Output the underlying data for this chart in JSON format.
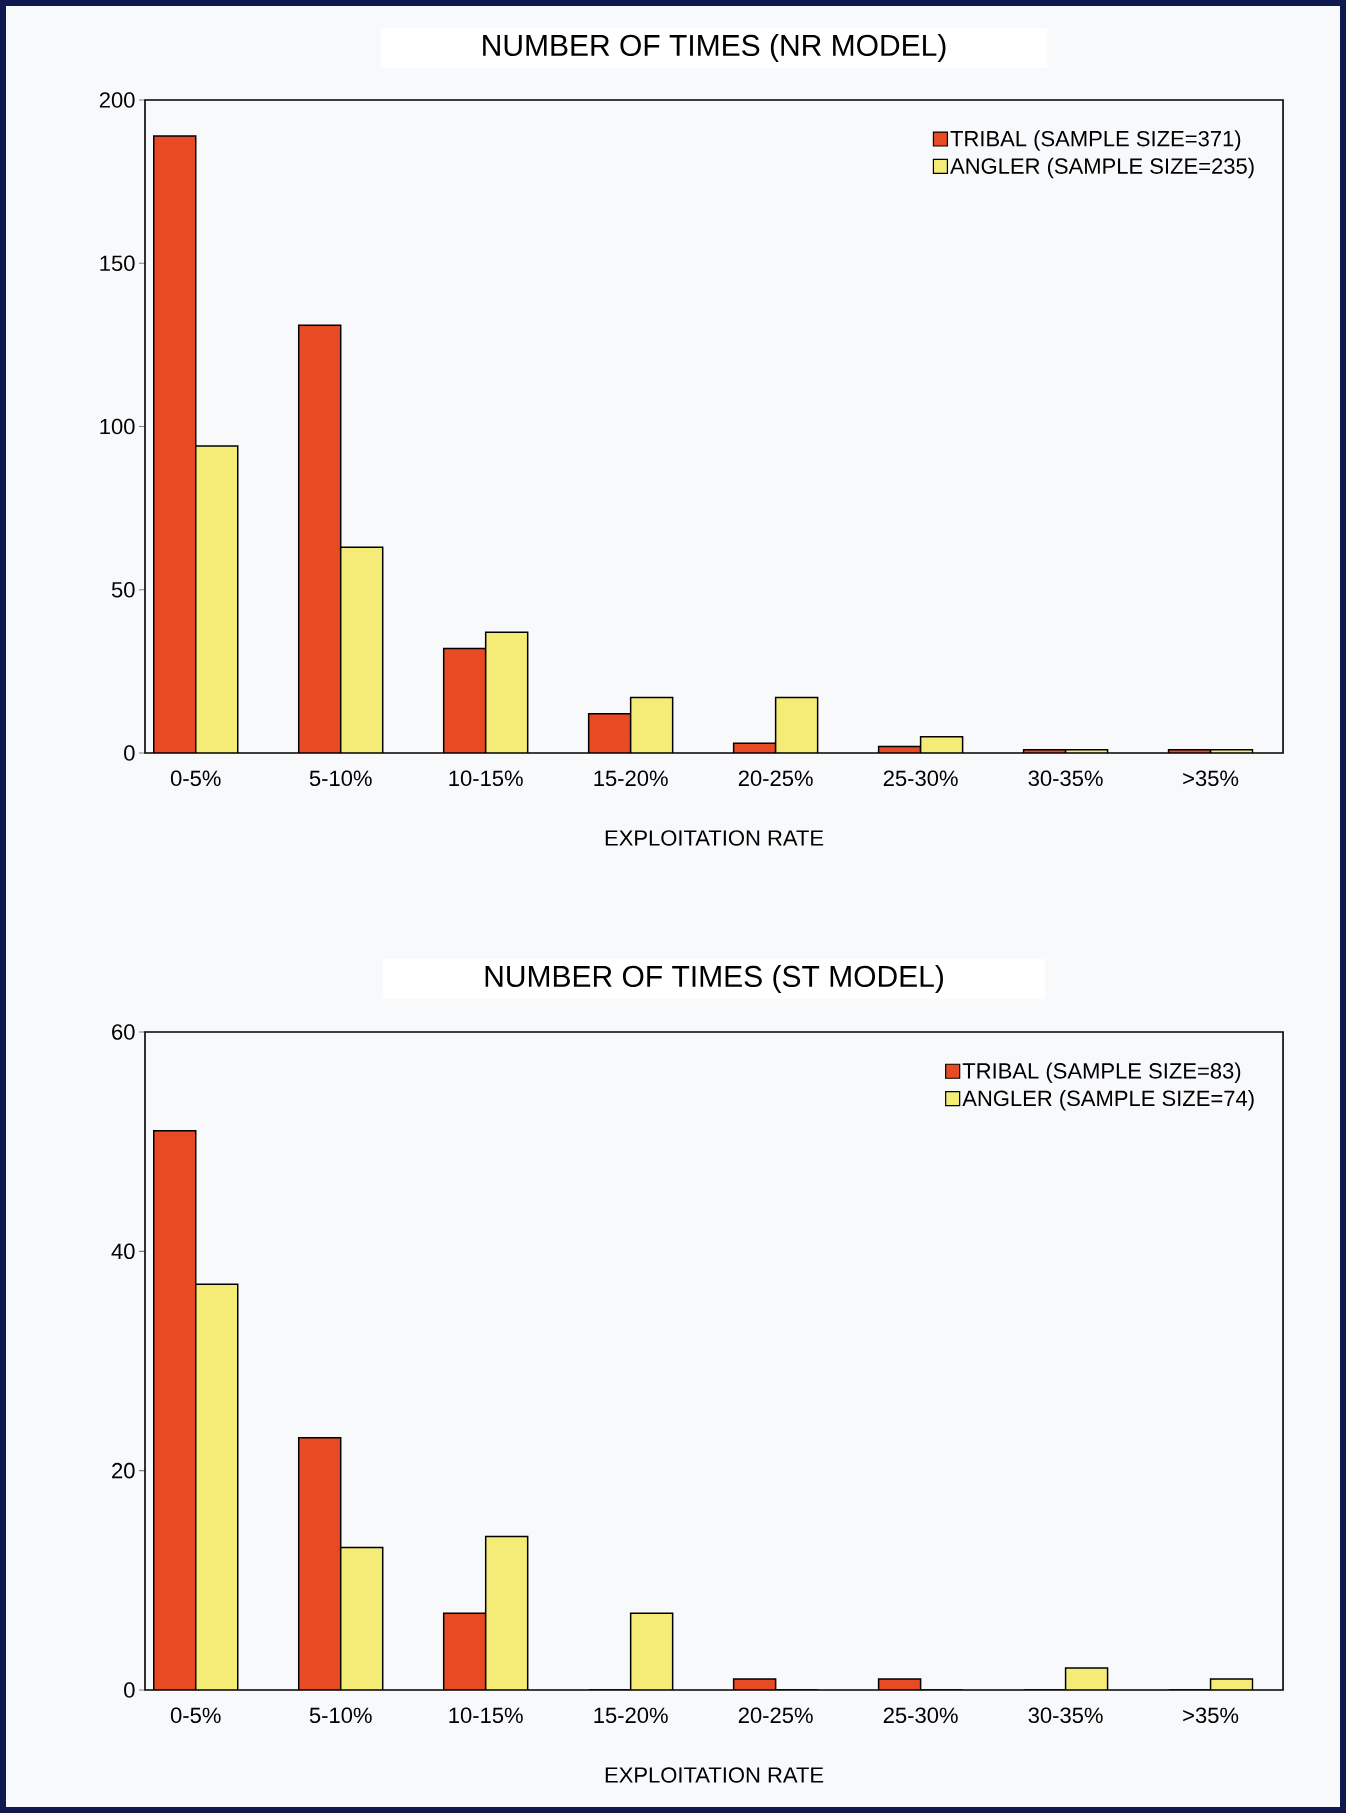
{
  "chart_data": [
    {
      "type": "bar",
      "title": "NUMBER OF TIMES (NR MODEL)",
      "xlabel": "EXPLOITATION RATE",
      "categories": [
        "0-5%",
        "5-10%",
        "10-15%",
        "15-20%",
        "20-25%",
        "25-30%",
        "30-35%",
        ">35%"
      ],
      "ylim": [
        0,
        200
      ],
      "yticks": [
        0,
        50,
        100,
        150,
        200
      ],
      "legend": "top right",
      "series": [
        {
          "name": "TRIBAL (SAMPLE SIZE=371)",
          "color": "#e84b23",
          "values": [
            189,
            131,
            32,
            12,
            3,
            2,
            1,
            1
          ]
        },
        {
          "name": "ANGLER (SAMPLE SIZE=235)",
          "color": "#f5ec78",
          "values": [
            94,
            63,
            37,
            17,
            17,
            5,
            1,
            1
          ]
        }
      ]
    },
    {
      "type": "bar",
      "title": "NUMBER OF TIMES (ST MODEL)",
      "xlabel": "EXPLOITATION RATE",
      "categories": [
        "0-5%",
        "5-10%",
        "10-15%",
        "15-20%",
        "20-25%",
        "25-30%",
        "30-35%",
        ">35%"
      ],
      "ylim": [
        0,
        60
      ],
      "yticks": [
        0,
        20,
        40,
        60
      ],
      "legend": "top right",
      "series": [
        {
          "name": "TRIBAL (SAMPLE SIZE=83)",
          "color": "#e84b23",
          "values": [
            51,
            23,
            7,
            0,
            1,
            1,
            0,
            0
          ]
        },
        {
          "name": "ANGLER (SAMPLE SIZE=74)",
          "color": "#f5ec78",
          "values": [
            37,
            13,
            14,
            7,
            0,
            0,
            2,
            1
          ]
        }
      ]
    }
  ]
}
